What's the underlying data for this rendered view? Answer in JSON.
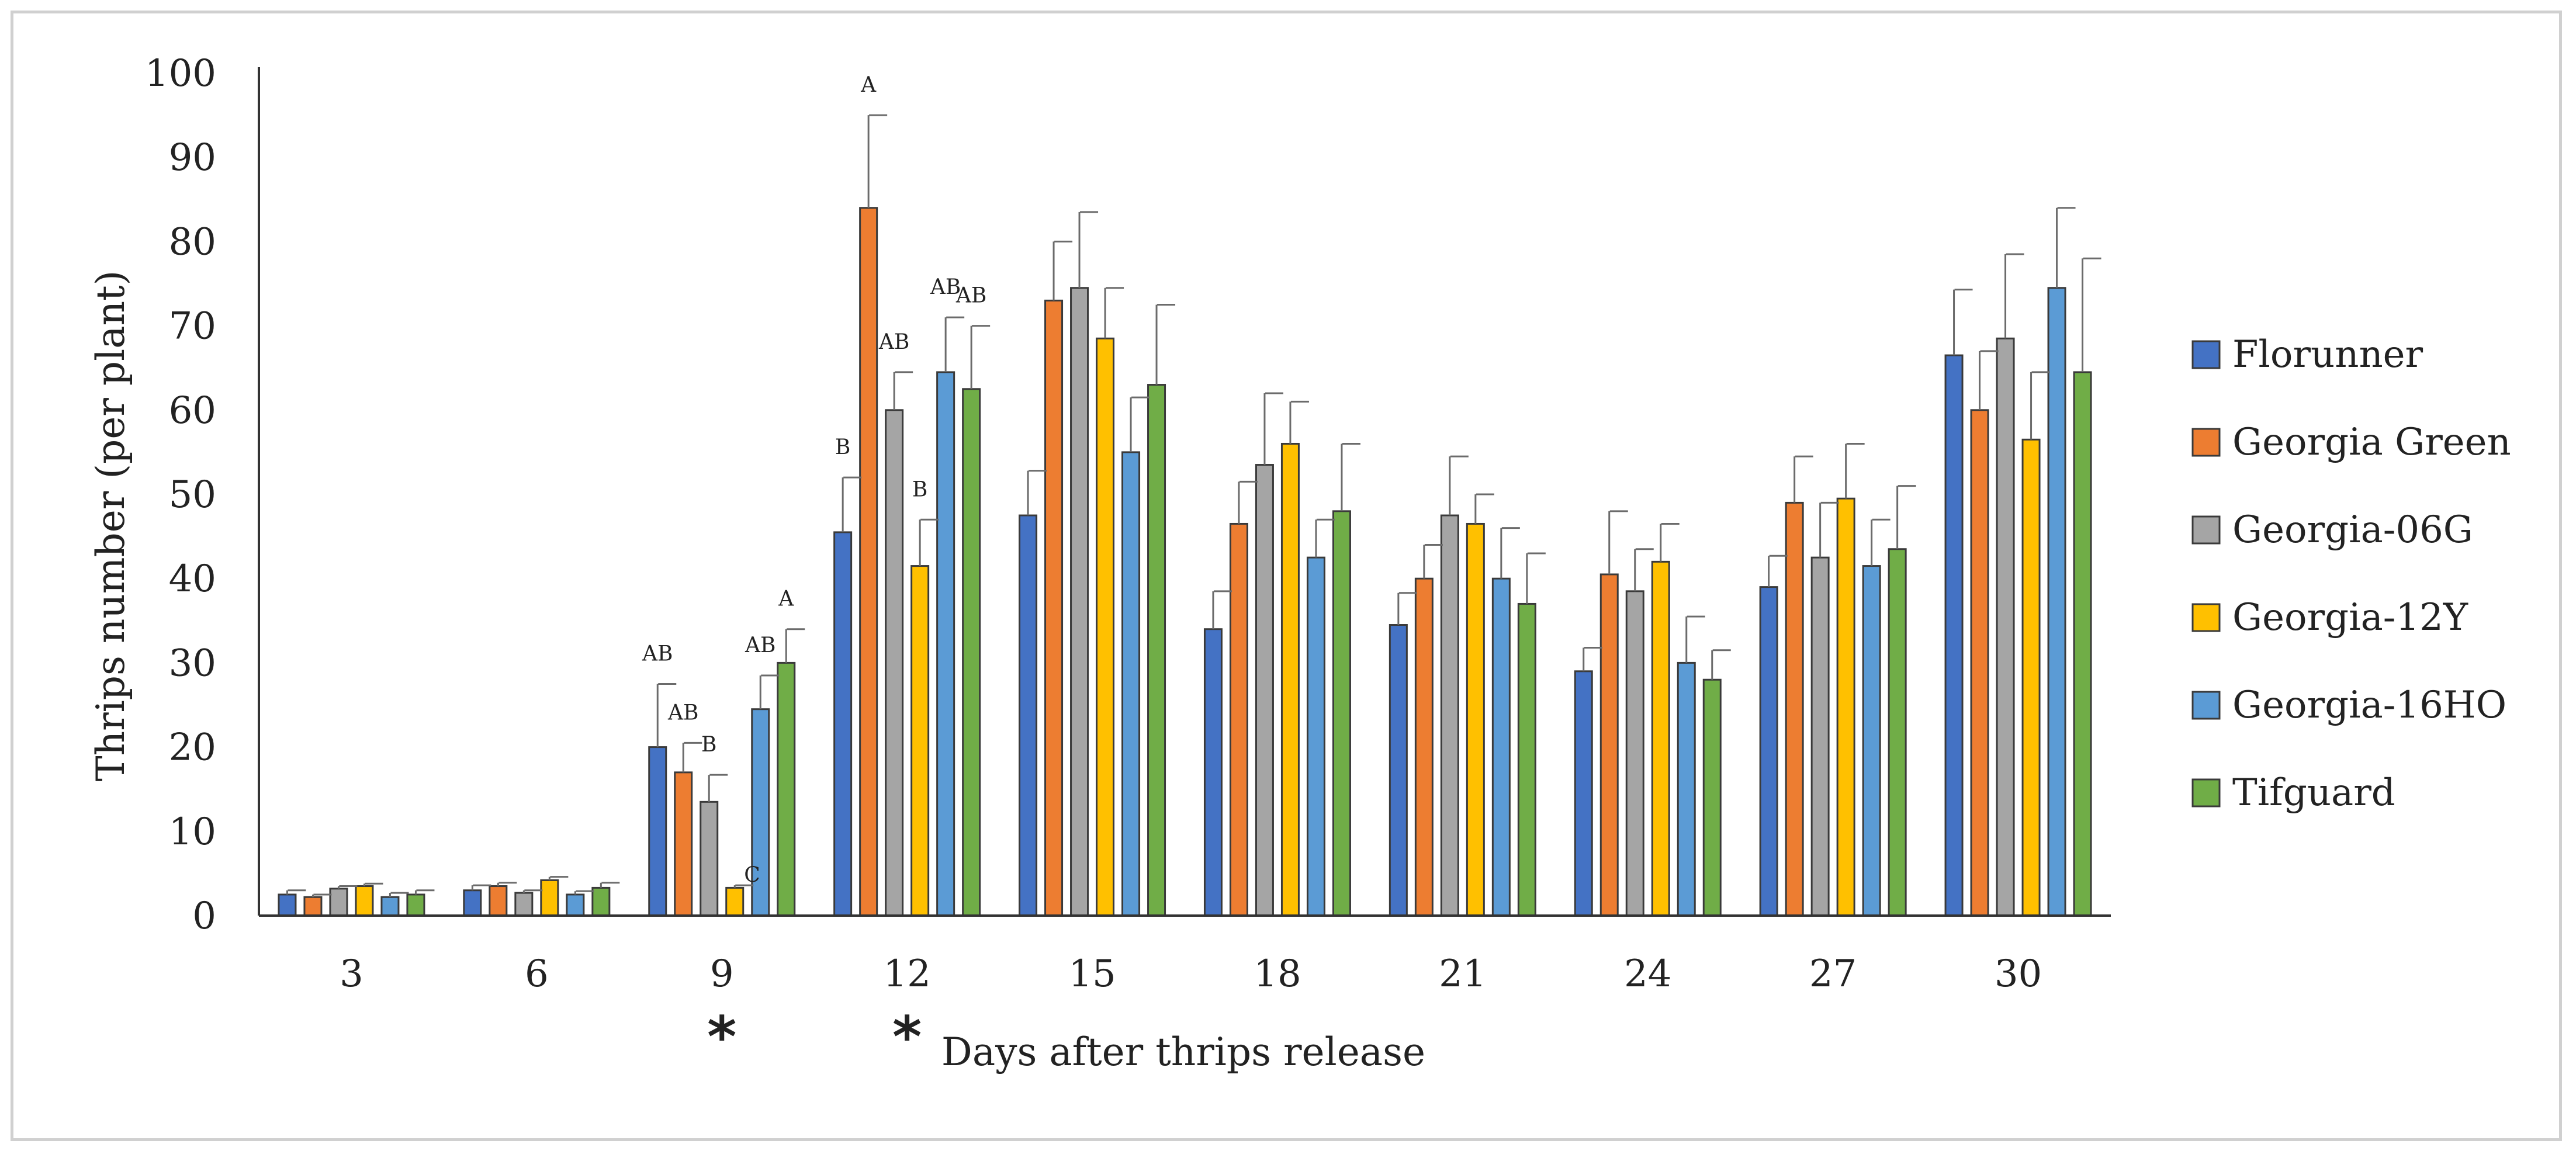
{
  "chart_data": {
    "type": "bar",
    "title": "",
    "xlabel": "Days after thrips release",
    "ylabel": "Thrips number (per plant)",
    "ylim": [
      0,
      100
    ],
    "yticks": [
      0,
      10,
      20,
      30,
      40,
      50,
      60,
      70,
      80,
      90,
      100
    ],
    "grid": false,
    "legend_position": "right",
    "categories": [
      "3",
      "6",
      "9",
      "12",
      "15",
      "18",
      "21",
      "24",
      "27",
      "30"
    ],
    "significant_markers": [
      "*",
      "*"
    ],
    "series": [
      {
        "name": "Florunner",
        "color": "#4472C4",
        "values": [
          2.5,
          3.0,
          20.0,
          45.5,
          47.5,
          34.0,
          34.5,
          29.0,
          39.0,
          66.5
        ],
        "errors": [
          0.5,
          0.6,
          7.5,
          6.5,
          5.3,
          4.5,
          3.8,
          2.8,
          3.7,
          7.8
        ],
        "letters": [
          "",
          "",
          "AB",
          "B",
          "",
          "",
          "",
          "",
          "",
          ""
        ]
      },
      {
        "name": "Georgia Green",
        "color": "#ED7D31",
        "values": [
          2.2,
          3.5,
          17.0,
          84.0,
          73.0,
          46.5,
          40.0,
          40.5,
          49.0,
          60.0
        ],
        "errors": [
          0.3,
          0.4,
          3.5,
          11.0,
          7.0,
          5.0,
          4.0,
          7.5,
          5.5,
          7.0
        ],
        "letters": [
          "",
          "",
          "AB",
          "A",
          "",
          "",
          "",
          "",
          "",
          ""
        ]
      },
      {
        "name": "Georgia-06G",
        "color": "#A5A5A5",
        "values": [
          3.2,
          2.7,
          13.5,
          60.0,
          74.5,
          53.5,
          47.5,
          38.5,
          42.5,
          68.5
        ],
        "errors": [
          0.3,
          0.3,
          3.2,
          4.5,
          9.0,
          8.5,
          7.0,
          5.0,
          6.5,
          10.0
        ],
        "letters": [
          "",
          "",
          "B",
          "AB",
          "",
          "",
          "",
          "",
          "",
          ""
        ]
      },
      {
        "name": "Georgia-12Y",
        "color": "#FFC000",
        "values": [
          3.5,
          4.2,
          3.3,
          41.5,
          68.5,
          56.0,
          46.5,
          42.0,
          49.5,
          56.5
        ],
        "errors": [
          0.3,
          0.4,
          0.3,
          5.5,
          6.0,
          5.0,
          3.5,
          4.5,
          6.5,
          8.0
        ],
        "letters": [
          "",
          "",
          "C",
          "B",
          "",
          "",
          "",
          "",
          "",
          ""
        ]
      },
      {
        "name": "Georgia-16HO",
        "color": "#5B9BD5",
        "values": [
          2.2,
          2.5,
          24.5,
          64.5,
          55.0,
          42.5,
          40.0,
          30.0,
          41.5,
          74.5
        ],
        "errors": [
          0.5,
          0.4,
          4.0,
          6.5,
          6.5,
          4.5,
          6.0,
          5.5,
          5.5,
          9.5
        ],
        "letters": [
          "",
          "",
          "AB",
          "AB",
          "",
          "",
          "",
          "",
          "",
          ""
        ]
      },
      {
        "name": "Tifguard",
        "color": "#70AD47",
        "values": [
          2.5,
          3.3,
          30.0,
          62.5,
          63.0,
          48.0,
          37.0,
          28.0,
          43.5,
          64.5
        ],
        "errors": [
          0.5,
          0.6,
          4.0,
          7.5,
          9.5,
          8.0,
          6.0,
          3.5,
          7.5,
          13.5
        ],
        "letters": [
          "",
          "",
          "A",
          "AB",
          "",
          "",
          "",
          "",
          "",
          ""
        ]
      }
    ]
  }
}
